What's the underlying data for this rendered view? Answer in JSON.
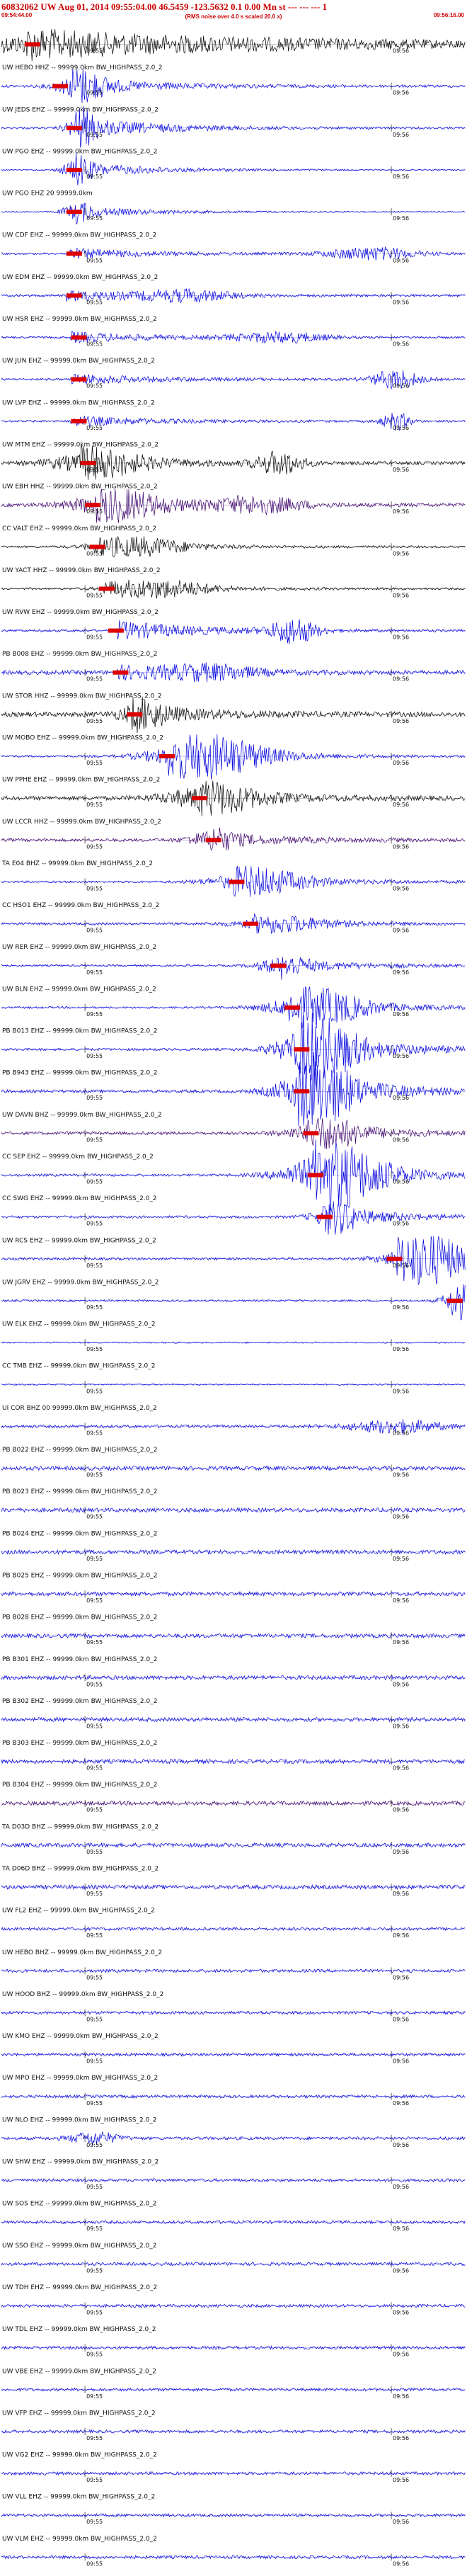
{
  "header": {
    "title": "60832062 UW Aug 01, 2014 09:55:04.00   46.5459  -123.5632   0.1 0.00 Mn st --- --- --- 1",
    "start_time": "09:54:44.00",
    "end_time": "09:56:16.00",
    "rms_note": "(RMS noise over 4.0 s scaled 20.0 x)"
  },
  "colors": {
    "trace_blue": "#0000dd",
    "trace_black": "#000000",
    "trace_purple": "#3a006b",
    "pick_red": "#dd0000",
    "tick": "#000000"
  },
  "chart_data": {
    "type": "seismogram_section",
    "tick_labels": [
      "09:55",
      "09:56"
    ],
    "traces": [
      {
        "label": "",
        "color": "black",
        "pick": 0.05,
        "onset": 0.05,
        "amp": 0.9,
        "noise": 0.55,
        "bursts": [
          [
            0.05,
            0.8,
            0.5
          ]
        ]
      },
      {
        "label": "UW HEBO HHZ -- 99999.0km BW_HIGHPASS_2.0_2",
        "color": "blue",
        "pick": 0.11,
        "onset": 0.15,
        "amp": 0.8,
        "noise": 0.25,
        "bursts": [
          [
            0.17,
            0.05,
            0.9
          ]
        ]
      },
      {
        "label": "UW JEDS EHZ -- 99999.0km BW_HIGHPASS_2.0_2",
        "color": "blue",
        "pick": 0.14,
        "onset": 0.16,
        "amp": 1.0,
        "noise": 0.2,
        "bursts": [
          [
            0.17,
            0.03,
            1.0
          ]
        ]
      },
      {
        "label": "UW PGO EHZ -- 99999.0km BW_HIGHPASS_2.0_2",
        "color": "blue",
        "pick": 0.14,
        "onset": 0.16,
        "amp": 0.7,
        "noise": 0.12,
        "bursts": [
          [
            0.16,
            0.03,
            0.8
          ]
        ]
      },
      {
        "label": "UW PGO EHZ 20 99999.0km",
        "color": "blue",
        "pick": 0.14,
        "onset": 0.16,
        "amp": 0.5,
        "noise": 0.1,
        "bursts": [
          [
            0.16,
            0.03,
            0.6
          ]
        ]
      },
      {
        "label": "UW CDF EHZ -- 99999.0km BW_HIGHPASS_2.0_2",
        "color": "blue",
        "pick": 0.14,
        "onset": 0.14,
        "amp": 0.5,
        "noise": 0.2,
        "bursts": [
          [
            0.8,
            0.1,
            0.5
          ]
        ]
      },
      {
        "label": "UW EDM EHZ -- 99999.0km BW_HIGHPASS_2.0_2",
        "color": "blue",
        "pick": 0.14,
        "onset": 0.14,
        "amp": 0.5,
        "noise": 0.25,
        "bursts": [
          [
            0.4,
            0.1,
            0.4
          ]
        ]
      },
      {
        "label": "UW HSR EHZ -- 99999.0km BW_HIGHPASS_2.0_2",
        "color": "blue",
        "pick": 0.15,
        "onset": 0.15,
        "amp": 0.5,
        "noise": 0.22,
        "bursts": [
          [
            0.6,
            0.1,
            0.4
          ]
        ]
      },
      {
        "label": "UW JUN EHZ -- 99999.0km BW_HIGHPASS_2.0_2",
        "color": "blue",
        "pick": 0.15,
        "onset": 0.15,
        "amp": 0.5,
        "noise": 0.22,
        "bursts": [
          [
            0.85,
            0.05,
            0.8
          ]
        ]
      },
      {
        "label": "UW LVP EHZ -- 99999.0km BW_HIGHPASS_2.0_2",
        "color": "blue",
        "pick": 0.15,
        "onset": 0.15,
        "amp": 0.5,
        "noise": 0.2,
        "bursts": [
          [
            0.85,
            0.03,
            0.7
          ]
        ]
      },
      {
        "label": "UW MTM EHZ -- 99999.0km BW_HIGHPASS_2.0_2",
        "color": "black",
        "pick": 0.17,
        "onset": 0.17,
        "amp": 0.9,
        "noise": 0.3,
        "bursts": [
          [
            0.2,
            0.1,
            0.7
          ],
          [
            0.6,
            0.05,
            0.9
          ]
        ]
      },
      {
        "label": "UW EBH HHZ -- 99999.0km BW_HIGHPASS_2.0_2",
        "color": "purple",
        "pick": 0.18,
        "onset": 0.2,
        "amp": 0.8,
        "noise": 0.35,
        "bursts": [
          [
            0.25,
            0.1,
            0.8
          ],
          [
            0.55,
            0.1,
            0.6
          ]
        ]
      },
      {
        "label": "CC VALT EHZ -- 99999.0km BW_HIGHPASS_2.0_2",
        "color": "black",
        "pick": 0.19,
        "onset": 0.2,
        "amp": 0.6,
        "noise": 0.2,
        "bursts": [
          [
            0.3,
            0.1,
            0.5
          ]
        ]
      },
      {
        "label": "UW YACT HHZ -- 99999.0km BW_HIGHPASS_2.0_2",
        "color": "black",
        "pick": 0.21,
        "onset": 0.22,
        "amp": 0.6,
        "noise": 0.2,
        "bursts": [
          [
            0.35,
            0.1,
            0.5
          ]
        ]
      },
      {
        "label": "UW RVW EHZ -- 99999.0km BW_HIGHPASS_2.0_2",
        "color": "blue",
        "pick": 0.23,
        "onset": 0.25,
        "amp": 0.9,
        "noise": 0.25,
        "bursts": [
          [
            0.63,
            0.05,
            1.0
          ]
        ]
      },
      {
        "label": "PB B008 EHZ -- 99999.0km BW_HIGHPASS_2.0_2",
        "color": "blue",
        "pick": 0.24,
        "onset": 0.25,
        "amp": 0.6,
        "noise": 0.4,
        "bursts": [
          [
            0.45,
            0.1,
            0.5
          ]
        ]
      },
      {
        "label": "UW STOR HHZ -- 99999.0km BW_HIGHPASS_2.0_2",
        "color": "black",
        "pick": 0.27,
        "onset": 0.28,
        "amp": 0.8,
        "noise": 0.45,
        "bursts": [
          [
            0.3,
            0.05,
            0.7
          ]
        ]
      },
      {
        "label": "UW MOBO EHZ -- 99999.0km BW_HIGHPASS_2.0_2",
        "color": "blue",
        "pick": 0.34,
        "onset": 0.36,
        "amp": 1.2,
        "noise": 0.2,
        "bursts": [
          [
            0.45,
            0.12,
            1.2
          ]
        ]
      },
      {
        "label": "UW PPHE EHZ -- 99999.0km BW_HIGHPASS_2.0_2",
        "color": "black",
        "pick": 0.41,
        "onset": 0.42,
        "amp": 0.8,
        "noise": 0.4,
        "bursts": [
          [
            0.45,
            0.1,
            0.8
          ]
        ]
      },
      {
        "label": "UW LCCR HHZ -- 99999.0km BW_HIGHPASS_2.0_2",
        "color": "purple",
        "pick": 0.44,
        "onset": 0.45,
        "amp": 0.6,
        "noise": 0.3,
        "bursts": [
          [
            0.45,
            0.05,
            0.6
          ]
        ]
      },
      {
        "label": "TA E04 BHZ -- 99999.0km BW_HIGHPASS_2.0_2",
        "color": "blue",
        "pick": 0.49,
        "onset": 0.5,
        "amp": 0.8,
        "noise": 0.2,
        "bursts": [
          [
            0.55,
            0.1,
            0.7
          ]
        ]
      },
      {
        "label": "CC HSO1 EHZ -- 99999.0km BW_HIGHPASS_2.0_2",
        "color": "blue",
        "pick": 0.52,
        "onset": 0.54,
        "amp": 0.5,
        "noise": 0.25,
        "bursts": [
          [
            0.6,
            0.1,
            0.4
          ]
        ]
      },
      {
        "label": "UW RER EHZ -- 99999.0km BW_HIGHPASS_2.0_2",
        "color": "blue",
        "pick": 0.58,
        "onset": 0.6,
        "amp": 0.6,
        "noise": 0.2,
        "bursts": [
          [
            0.6,
            0.05,
            0.6
          ]
        ]
      },
      {
        "label": "UW BLN EHZ -- 99999.0km BW_HIGHPASS_2.0_2",
        "color": "blue",
        "pick": 0.61,
        "onset": 0.62,
        "amp": 1.0,
        "noise": 0.2,
        "bursts": [
          [
            0.68,
            0.1,
            1.0
          ]
        ]
      },
      {
        "label": "PB B013 EHZ -- 99999.0km BW_HIGHPASS_2.0_2",
        "color": "blue",
        "pick": 0.63,
        "onset": 0.64,
        "amp": 1.6,
        "noise": 0.25,
        "bursts": [
          [
            0.68,
            0.08,
            1.8
          ]
        ]
      },
      {
        "label": "PB B943 EHZ -- 99999.0km BW_HIGHPASS_2.0_2",
        "color": "blue",
        "pick": 0.63,
        "onset": 0.64,
        "amp": 1.6,
        "noise": 0.3,
        "bursts": [
          [
            0.68,
            0.08,
            1.8
          ]
        ]
      },
      {
        "label": "UW DAVN BHZ -- 99999.0km BW_HIGHPASS_2.0_2",
        "color": "purple",
        "pick": 0.65,
        "onset": 0.66,
        "amp": 0.8,
        "noise": 0.3,
        "bursts": [
          [
            0.7,
            0.08,
            0.8
          ]
        ]
      },
      {
        "label": "CC SEP EHZ -- 99999.0km BW_HIGHPASS_2.0_2",
        "color": "blue",
        "pick": 0.66,
        "onset": 0.67,
        "amp": 1.6,
        "noise": 0.25,
        "bursts": [
          [
            0.72,
            0.1,
            1.8
          ]
        ]
      },
      {
        "label": "CC SWG EHZ -- 99999.0km BW_HIGHPASS_2.0_2",
        "color": "blue",
        "pick": 0.68,
        "onset": 0.69,
        "amp": 0.8,
        "noise": 0.25,
        "bursts": [
          [
            0.72,
            0.05,
            0.8
          ]
        ]
      },
      {
        "label": "UW RCS EHZ -- 99999.0km BW_HIGHPASS_2.0_2",
        "color": "blue",
        "pick": 0.83,
        "onset": 0.85,
        "amp": 1.3,
        "noise": 0.25,
        "bursts": [
          [
            0.92,
            0.08,
            1.4
          ]
        ]
      },
      {
        "label": "UW JGRV EHZ -- 99999.0km BW_HIGHPASS_2.0_2",
        "color": "blue",
        "pick": 0.96,
        "onset": 0.97,
        "amp": 0.9,
        "noise": 0.2,
        "bursts": [
          [
            0.98,
            0.03,
            0.9
          ]
        ]
      },
      {
        "label": "UW ELK EHZ -- 99999.0km BW_HIGHPASS_2.0_2",
        "color": "blue",
        "pick": -1,
        "onset": 1.2,
        "amp": 0.4,
        "noise": 0.15,
        "bursts": []
      },
      {
        "label": "CC TMB EHZ -- 99999.0km BW_HIGHPASS_2.0_2",
        "color": "blue",
        "pick": -1,
        "onset": 1.2,
        "amp": 0.4,
        "noise": 0.15,
        "bursts": []
      },
      {
        "label": "UI COR BHZ 00 99999.0km BW_HIGHPASS_2.0_2",
        "color": "blue",
        "pick": -1,
        "onset": 1.2,
        "amp": 0.5,
        "noise": 0.3,
        "bursts": [
          [
            0.85,
            0.1,
            0.5
          ]
        ]
      },
      {
        "label": "PB B022 EHZ -- 99999.0km BW_HIGHPASS_2.0_2",
        "color": "blue",
        "pick": -1,
        "onset": 1.2,
        "amp": 0.5,
        "noise": 0.4,
        "bursts": []
      },
      {
        "label": "PB B023 EHZ -- 99999.0km BW_HIGHPASS_2.0_2",
        "color": "blue",
        "pick": -1,
        "onset": 1.2,
        "amp": 0.5,
        "noise": 0.4,
        "bursts": []
      },
      {
        "label": "PB B024 EHZ -- 99999.0km BW_HIGHPASS_2.0_2",
        "color": "blue",
        "pick": -1,
        "onset": 1.2,
        "amp": 0.5,
        "noise": 0.4,
        "bursts": []
      },
      {
        "label": "PB B025 EHZ -- 99999.0km BW_HIGHPASS_2.0_2",
        "color": "blue",
        "pick": -1,
        "onset": 1.2,
        "amp": 0.5,
        "noise": 0.4,
        "bursts": []
      },
      {
        "label": "PB B028 EHZ -- 99999.0km BW_HIGHPASS_2.0_2",
        "color": "blue",
        "pick": -1,
        "onset": 1.2,
        "amp": 0.5,
        "noise": 0.4,
        "bursts": []
      },
      {
        "label": "PB B301 EHZ -- 99999.0km BW_HIGHPASS_2.0_2",
        "color": "blue",
        "pick": -1,
        "onset": 1.2,
        "amp": 0.5,
        "noise": 0.4,
        "bursts": []
      },
      {
        "label": "PB B302 EHZ -- 99999.0km BW_HIGHPASS_2.0_2",
        "color": "blue",
        "pick": -1,
        "onset": 1.2,
        "amp": 0.5,
        "noise": 0.4,
        "bursts": []
      },
      {
        "label": "PB B303 EHZ -- 99999.0km BW_HIGHPASS_2.0_2",
        "color": "blue",
        "pick": -1,
        "onset": 1.2,
        "amp": 0.5,
        "noise": 0.4,
        "bursts": []
      },
      {
        "label": "PB B304 EHZ -- 99999.0km BW_HIGHPASS_2.0_2",
        "color": "purple",
        "pick": -1,
        "onset": 1.2,
        "amp": 0.5,
        "noise": 0.4,
        "bursts": []
      },
      {
        "label": "TA D03D BHZ -- 99999.0km BW_HIGHPASS_2.0_2",
        "color": "blue",
        "pick": -1,
        "onset": 1.2,
        "amp": 0.5,
        "noise": 0.4,
        "bursts": []
      },
      {
        "label": "TA D06D BHZ -- 99999.0km BW_HIGHPASS_2.0_2",
        "color": "blue",
        "pick": -1,
        "onset": 1.2,
        "amp": 0.5,
        "noise": 0.4,
        "bursts": []
      },
      {
        "label": "UW FL2 EHZ -- 99999.0km BW_HIGHPASS_2.0_2",
        "color": "blue",
        "pick": -1,
        "onset": 1.2,
        "amp": 0.5,
        "noise": 0.3,
        "bursts": []
      },
      {
        "label": "UW HEBO BHZ -- 99999.0km BW_HIGHPASS_2.0_2",
        "color": "blue",
        "pick": -1,
        "onset": 1.2,
        "amp": 0.5,
        "noise": 0.3,
        "bursts": []
      },
      {
        "label": "UW HOOD BHZ -- 99999.0km BW_HIGHPASS_2.0_2",
        "color": "blue",
        "pick": -1,
        "onset": 1.2,
        "amp": 0.5,
        "noise": 0.3,
        "bursts": []
      },
      {
        "label": "UW KMO EHZ -- 99999.0km BW_HIGHPASS_2.0_2",
        "color": "blue",
        "pick": -1,
        "onset": 1.2,
        "amp": 0.5,
        "noise": 0.3,
        "bursts": []
      },
      {
        "label": "UW MPO EHZ -- 99999.0km BW_HIGHPASS_2.0_2",
        "color": "blue",
        "pick": -1,
        "onset": 1.2,
        "amp": 0.5,
        "noise": 0.3,
        "bursts": []
      },
      {
        "label": "UW NLO EHZ -- 99999.0km BW_HIGHPASS_2.0_2",
        "color": "blue",
        "pick": -1,
        "onset": 1.2,
        "amp": 0.5,
        "noise": 0.3,
        "bursts": [
          [
            0.2,
            0.05,
            0.5
          ]
        ]
      },
      {
        "label": "UW SHW EHZ -- 99999.0km BW_HIGHPASS_2.0_2",
        "color": "blue",
        "pick": -1,
        "onset": 1.2,
        "amp": 0.5,
        "noise": 0.3,
        "bursts": []
      },
      {
        "label": "UW SOS EHZ -- 99999.0km BW_HIGHPASS_2.0_2",
        "color": "blue",
        "pick": -1,
        "onset": 1.2,
        "amp": 0.5,
        "noise": 0.3,
        "bursts": []
      },
      {
        "label": "UW SSO EHZ -- 99999.0km BW_HIGHPASS_2.0_2",
        "color": "blue",
        "pick": -1,
        "onset": 1.2,
        "amp": 0.5,
        "noise": 0.3,
        "bursts": []
      },
      {
        "label": "UW TDH EHZ -- 99999.0km BW_HIGHPASS_2.0_2",
        "color": "blue",
        "pick": -1,
        "onset": 1.2,
        "amp": 0.5,
        "noise": 0.3,
        "bursts": []
      },
      {
        "label": "UW TDL EHZ -- 99999.0km BW_HIGHPASS_2.0_2",
        "color": "blue",
        "pick": -1,
        "onset": 1.2,
        "amp": 0.5,
        "noise": 0.3,
        "bursts": []
      },
      {
        "label": "UW VBE EHZ -- 99999.0km BW_HIGHPASS_2.0_2",
        "color": "blue",
        "pick": -1,
        "onset": 1.2,
        "amp": 0.5,
        "noise": 0.3,
        "bursts": []
      },
      {
        "label": "UW VFP EHZ -- 99999.0km BW_HIGHPASS_2.0_2",
        "color": "blue",
        "pick": -1,
        "onset": 1.2,
        "amp": 0.5,
        "noise": 0.3,
        "bursts": []
      },
      {
        "label": "UW VG2 EHZ -- 99999.0km BW_HIGHPASS_2.0_2",
        "color": "blue",
        "pick": -1,
        "onset": 1.2,
        "amp": 0.5,
        "noise": 0.3,
        "bursts": []
      },
      {
        "label": "UW VLL EHZ -- 99999.0km BW_HIGHPASS_2.0_2",
        "color": "blue",
        "pick": -1,
        "onset": 1.2,
        "amp": 0.5,
        "noise": 0.3,
        "bursts": []
      },
      {
        "label": "UW VLM EHZ -- 99999.0km BW_HIGHPASS_2.0_2",
        "color": "blue",
        "pick": -1,
        "onset": 1.2,
        "amp": 0.5,
        "noise": 0.3,
        "bursts": []
      }
    ]
  }
}
